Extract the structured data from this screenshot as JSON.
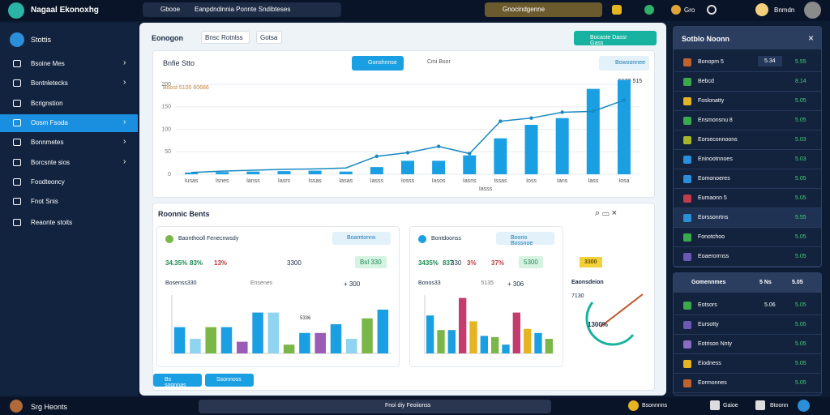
{
  "topbar": {
    "brand": "Nagaal Ekonoxhg",
    "search": "Gbooe",
    "breadcrumb": "Eanpdndinnia Ponnte Sndibteses",
    "dropdown": "Gnocindgenne",
    "status": "Gro",
    "user": "Bnmdn"
  },
  "sidebar": {
    "header": "Stottis",
    "items": [
      "Bsoine Mes",
      "Bontnletecks",
      "Bcrignstion",
      "Oosm Fsoda",
      "Bonnmetes",
      "Borcsnte sios",
      "Foodteoncy",
      "Fnot Snis",
      "Reaonte stoits"
    ],
    "footer": "Srg Heonts"
  },
  "main": {
    "tabs": [
      "Eonogon",
      "Bnsc Rotnlss",
      "Gotsa"
    ],
    "action": "Bocaste Dassr Gass",
    "chart": {
      "type": "bar",
      "title": "Bnfie Stto",
      "button": "Gonshnnse",
      "legend": "Cmi Bsor",
      "button2": "Bowoonnee",
      "subtitle": "Boost 5100 60686",
      "annotation": "5130 515",
      "xlabel": "Iasss",
      "categories": [
        "Iusas",
        "Isnes",
        "Ianss",
        "Iasrs",
        "Issas",
        "Iasas",
        "Iasss",
        "Iosss",
        "Iasos",
        "Iasns",
        "Issas",
        "Ioss",
        "Ians",
        "Iass",
        "Iosa"
      ],
      "series": [
        {
          "name": "Bsor",
          "color": "#1a9fe3",
          "values": [
            4,
            5,
            6,
            7,
            8,
            6,
            16,
            30,
            30,
            42,
            80,
            110,
            125,
            190,
            210
          ]
        },
        {
          "name": "Cmi",
          "color": "#1889c0",
          "values": [
            4,
            7,
            9,
            11,
            12,
            14,
            40,
            48,
            62,
            46,
            118,
            125,
            138,
            140,
            165
          ]
        }
      ],
      "ylim": [
        0,
        220
      ],
      "yticks": [
        0,
        50,
        100,
        150,
        200
      ]
    },
    "section": {
      "title": "Roonnic Bents",
      "card1": {
        "title": "Baonthooll Fenecnwsdy",
        "button": "Boamtonns",
        "stats": [
          "34.35%",
          "83%",
          "13%"
        ],
        "stat_main": "3300",
        "badge": "Bsl 330",
        "sub1": "Bosenss330",
        "sub2": "Ensenes",
        "sub3": "+ 300",
        "label": "5336",
        "values": [
          45,
          25,
          45,
          45,
          20,
          70,
          70,
          15,
          35,
          35,
          50,
          25,
          60,
          75
        ],
        "ylim": [
          0,
          100
        ]
      },
      "card2": {
        "title": "Bontdoonss",
        "button": "Boono Bossnoe",
        "stats": [
          "3435%",
          "837",
          "3%",
          "37%"
        ],
        "stat_main": "330",
        "badge": "5300",
        "sub1": "Bonos33",
        "sub2": "5135",
        "sub3": "+ 306",
        "values": [
          65,
          40,
          40,
          95,
          55,
          30,
          28,
          15,
          70,
          42,
          35,
          25
        ],
        "ylim": [
          0,
          100
        ]
      },
      "card3": {
        "title": "Eaonsdeion",
        "gauge": "1300%",
        "badge": "3300",
        "tick": "7130"
      },
      "buttons": [
        "Bs sognnas",
        "Ssonnoss"
      ]
    }
  },
  "right": {
    "title": "Sotblo Noonn",
    "rows": [
      [
        "Bonopm 5",
        "5.34",
        "5.55"
      ],
      [
        "Bebcd",
        "",
        "8.14"
      ],
      [
        "Foslonatty",
        "",
        "5.05"
      ],
      [
        "Ensmonsnu 8",
        "",
        "5.05"
      ],
      [
        "Eorseconnoons",
        "",
        "5.03"
      ],
      [
        "Eninootnnoes",
        "",
        "5.03"
      ],
      [
        "Eomonoeres",
        "",
        "5.05"
      ],
      [
        "Eumaonn 5",
        "",
        "5.05"
      ],
      [
        "Eorssonrtns",
        "",
        "5.55"
      ],
      [
        "Fonotchoo",
        "",
        "5.05"
      ],
      [
        "Eoaerorrnss",
        "",
        "5.05"
      ]
    ],
    "header2": [
      "Gomennmes",
      "5 Ns",
      "5.05"
    ],
    "rows2": [
      [
        "Eotsors",
        "5.06",
        "5.05"
      ],
      [
        "Eursotty",
        "",
        "5.05"
      ],
      [
        "Eotrison Nnty",
        "",
        "5.05"
      ],
      [
        "Eiodness",
        "",
        "5.05"
      ],
      [
        "Eormonnes",
        "",
        "5.05"
      ]
    ]
  },
  "bottombar": {
    "user": "Srg Heonts",
    "search": "Fnoi diy Feoiionss",
    "items": [
      "Bsonnnns",
      "Gaioe",
      "Btoonn"
    ]
  }
}
